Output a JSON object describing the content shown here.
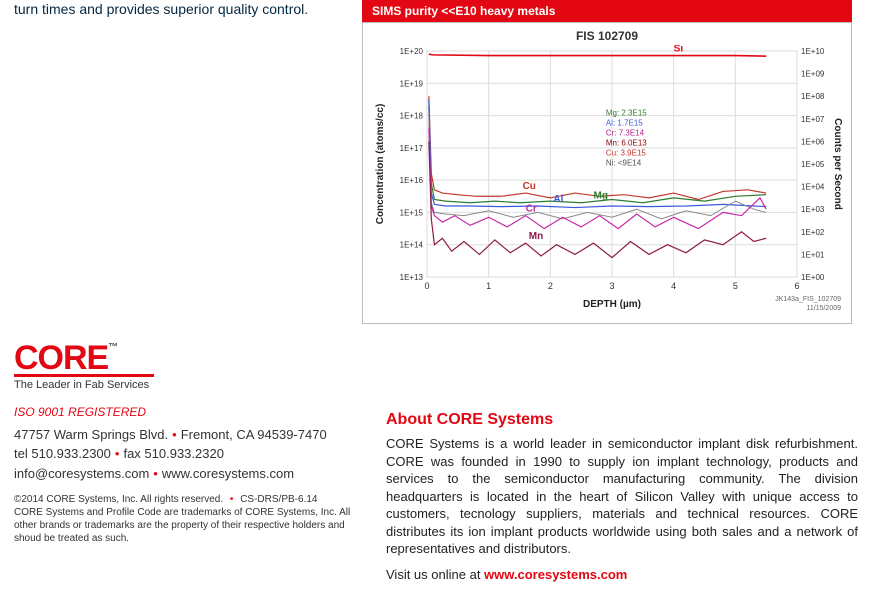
{
  "topleft_text": "turn times and provides superior quality control.",
  "chart": {
    "banner": "SIMS purity <<E10 heavy metals",
    "title": "FIS 102709",
    "x_label": "DEPTH (µm)",
    "y_left_label": "Concentration (atoms/cc)",
    "y_right_label": "Counts per Second",
    "footnote_top": "JK143a_FIS_102709",
    "footnote_bot": "11/15/2009",
    "x_ticks": [
      "0",
      "1",
      "2",
      "3",
      "4",
      "5",
      "6"
    ],
    "y_left_ticks": [
      "1E+13",
      "1E+14",
      "1E+15",
      "1E+16",
      "1E+17",
      "1E+18",
      "1E+19",
      "1E+20"
    ],
    "y_right_ticks": [
      "1E+00",
      "1E+01",
      "1E+02",
      "1E+03",
      "1E+04",
      "1E+05",
      "1E+06",
      "1E+07",
      "1E+08",
      "1E+09",
      "1E+10"
    ],
    "grid_color": "#dddddd",
    "axis_color": "#777777",
    "plot_bg": "#ffffff",
    "legend_box": [
      {
        "t": "Mg: 2.3E15",
        "c": "#2e7d32"
      },
      {
        "t": "Al: 1.7E15",
        "c": "#3b5bdb"
      },
      {
        "t": "Cr: 7.3E14",
        "c": "#b71c8c"
      },
      {
        "t": "Mn: 6.0E13",
        "c": "#8b0000"
      },
      {
        "t": "Cu: 3.9E15",
        "c": "#c0392b"
      },
      {
        "t": "Ni: <9E14",
        "c": "#555555"
      }
    ],
    "series": [
      {
        "name": "Si",
        "color": "#e30613",
        "width": 1.6,
        "label_at": 4.0,
        "pts": [
          [
            0.03,
            19.9
          ],
          [
            0.1,
            19.88
          ],
          [
            1,
            19.86
          ],
          [
            2,
            19.86
          ],
          [
            3,
            19.86
          ],
          [
            4,
            19.86
          ],
          [
            5,
            19.86
          ],
          [
            5.5,
            19.84
          ]
        ]
      },
      {
        "name": "Cu",
        "color": "#c0392b",
        "width": 1.2,
        "label_at": 1.55,
        "pts": [
          [
            0.03,
            18.6
          ],
          [
            0.07,
            16.2
          ],
          [
            0.12,
            15.7
          ],
          [
            0.25,
            15.6
          ],
          [
            0.5,
            15.55
          ],
          [
            0.8,
            15.5
          ],
          [
            1.2,
            15.5
          ],
          [
            1.6,
            15.6
          ],
          [
            2.0,
            15.45
          ],
          [
            2.4,
            15.6
          ],
          [
            2.8,
            15.5
          ],
          [
            3.2,
            15.55
          ],
          [
            3.6,
            15.45
          ],
          [
            4.0,
            15.6
          ],
          [
            4.4,
            15.4
          ],
          [
            4.8,
            15.65
          ],
          [
            5.2,
            15.7
          ],
          [
            5.5,
            15.6
          ]
        ]
      },
      {
        "name": "Mg",
        "color": "#2e7d32",
        "width": 1.2,
        "label_at": 2.7,
        "pts": [
          [
            0.03,
            18.3
          ],
          [
            0.07,
            15.9
          ],
          [
            0.12,
            15.4
          ],
          [
            0.3,
            15.35
          ],
          [
            0.7,
            15.3
          ],
          [
            1.1,
            15.35
          ],
          [
            1.5,
            15.3
          ],
          [
            2.0,
            15.35
          ],
          [
            2.5,
            15.3
          ],
          [
            3.0,
            15.4
          ],
          [
            3.5,
            15.3
          ],
          [
            4.0,
            15.45
          ],
          [
            4.5,
            15.35
          ],
          [
            5.0,
            15.5
          ],
          [
            5.5,
            15.55
          ]
        ]
      },
      {
        "name": "Al",
        "color": "#3b5bdb",
        "width": 1.2,
        "label_at": 2.05,
        "pts": [
          [
            0.03,
            18.5
          ],
          [
            0.07,
            15.6
          ],
          [
            0.12,
            15.25
          ],
          [
            0.3,
            15.2
          ],
          [
            0.7,
            15.2
          ],
          [
            1.2,
            15.18
          ],
          [
            1.8,
            15.2
          ],
          [
            2.4,
            15.15
          ],
          [
            3.0,
            15.2
          ],
          [
            3.6,
            15.18
          ],
          [
            4.2,
            15.2
          ],
          [
            4.8,
            15.25
          ],
          [
            5.3,
            15.2
          ],
          [
            5.5,
            15.18
          ]
        ]
      },
      {
        "name": "Ni",
        "color": "#888888",
        "width": 1.0,
        "label_at": null,
        "pts": [
          [
            0.03,
            17.8
          ],
          [
            0.07,
            15.3
          ],
          [
            0.12,
            15.0
          ],
          [
            0.3,
            14.95
          ],
          [
            0.6,
            14.9
          ],
          [
            1.0,
            15.05
          ],
          [
            1.4,
            14.85
          ],
          [
            1.8,
            15.0
          ],
          [
            2.2,
            14.8
          ],
          [
            2.6,
            15.0
          ],
          [
            3.0,
            14.85
          ],
          [
            3.4,
            15.1
          ],
          [
            3.8,
            14.8
          ],
          [
            4.2,
            15.05
          ],
          [
            4.6,
            14.9
          ],
          [
            5.0,
            15.35
          ],
          [
            5.3,
            15.1
          ],
          [
            5.5,
            15.0
          ]
        ]
      },
      {
        "name": "Cr",
        "color": "#c728a8",
        "width": 1.2,
        "label_at": 1.6,
        "pts": [
          [
            0.03,
            17.6
          ],
          [
            0.07,
            15.2
          ],
          [
            0.12,
            14.9
          ],
          [
            0.25,
            14.7
          ],
          [
            0.45,
            14.9
          ],
          [
            0.7,
            14.6
          ],
          [
            1.0,
            14.85
          ],
          [
            1.3,
            14.55
          ],
          [
            1.6,
            14.9
          ],
          [
            1.9,
            14.5
          ],
          [
            2.2,
            14.85
          ],
          [
            2.5,
            14.55
          ],
          [
            2.8,
            14.9
          ],
          [
            3.1,
            14.5
          ],
          [
            3.4,
            14.95
          ],
          [
            3.7,
            14.55
          ],
          [
            4.0,
            14.85
          ],
          [
            4.4,
            14.5
          ],
          [
            4.8,
            15.0
          ],
          [
            5.1,
            14.9
          ],
          [
            5.4,
            15.45
          ],
          [
            5.5,
            15.1
          ]
        ]
      },
      {
        "name": "Mn",
        "color": "#8b1a4a",
        "width": 1.2,
        "label_at": 1.65,
        "pts": [
          [
            0.03,
            17.2
          ],
          [
            0.07,
            14.8
          ],
          [
            0.12,
            14.0
          ],
          [
            0.25,
            14.2
          ],
          [
            0.4,
            13.8
          ],
          [
            0.6,
            14.1
          ],
          [
            0.85,
            13.7
          ],
          [
            1.1,
            14.15
          ],
          [
            1.35,
            13.75
          ],
          [
            1.6,
            14.05
          ],
          [
            1.85,
            13.65
          ],
          [
            2.1,
            14.0
          ],
          [
            2.4,
            13.7
          ],
          [
            2.7,
            14.05
          ],
          [
            3.0,
            13.6
          ],
          [
            3.3,
            14.1
          ],
          [
            3.6,
            13.7
          ],
          [
            3.9,
            14.0
          ],
          [
            4.2,
            13.75
          ],
          [
            4.5,
            14.15
          ],
          [
            4.8,
            14.0
          ],
          [
            5.1,
            14.4
          ],
          [
            5.3,
            14.1
          ],
          [
            5.5,
            14.2
          ]
        ]
      }
    ],
    "x_domain": [
      0,
      6
    ],
    "y_domain": [
      13,
      20
    ],
    "y_right_domain": [
      0,
      10
    ]
  },
  "footer": {
    "logo_text": "CORE",
    "logo_tm": "™",
    "logo_tagline": "The Leader in Fab Services",
    "iso": "ISO 9001 REGISTERED",
    "address": "47757 Warm Springs Blvd.",
    "city": "Fremont, CA 94539-7470",
    "tel_label": "tel",
    "tel": "510.933.2300",
    "fax_label": "fax",
    "fax": "510.933.2320",
    "email": "info@coresystems.com",
    "website": "www.coresystems.com",
    "copyright": "©2014 CORE Systems, Inc. All rights reserved.",
    "doc_id": "CS-DRS/PB-6.14",
    "trademark": "CORE Systems and Profile Code are trademarks of CORE Systems, Inc. All other brands or trademarks are the property of their respective holders and shoud be treated as such."
  },
  "about": {
    "heading": "About CORE Systems",
    "body": "CORE Systems is a world leader in semiconductor implant disk refurbishment. CORE was founded in 1990 to supply ion implant technology, products and services to the semiconductor manufacturing community. The division headquarters is located in the heart of Silicon Valley with unique access to customers, tecnology suppliers, materials and technical resources. CORE distributes its ion implant products worldwide using both sales and a network of representatives and distributors.",
    "visit_prefix": "Visit us online at ",
    "visit_link": "www.coresystems.com"
  }
}
